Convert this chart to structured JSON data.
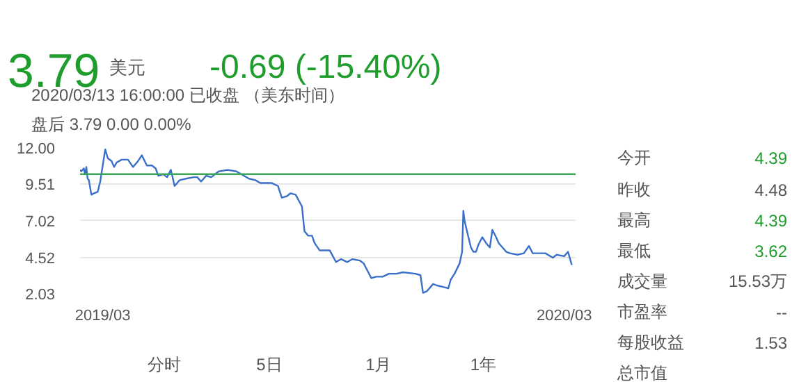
{
  "chart_data": {
    "type": "line",
    "x": [
      "2019-02-11",
      "2019-02-12",
      "2019-02-14",
      "2019-02-15",
      "2019-02-16",
      "2019-02-17",
      "2019-02-18",
      "2019-02-20",
      "2019-02-22",
      "2019-02-25",
      "2019-02-27",
      "2019-03-01",
      "2019-03-03",
      "2019-03-05",
      "2019-03-08",
      "2019-03-10",
      "2019-03-12",
      "2019-03-16",
      "2019-03-21",
      "2019-03-25",
      "2019-03-29",
      "2019-04-01",
      "2019-04-05",
      "2019-04-09",
      "2019-04-12",
      "2019-04-14",
      "2019-04-18",
      "2019-04-21",
      "2019-04-24",
      "2019-04-27",
      "2019-05-01",
      "2019-05-06",
      "2019-05-12",
      "2019-05-15",
      "2019-05-18",
      "2019-05-22",
      "2019-05-26",
      "2019-06-01",
      "2019-06-08",
      "2019-06-15",
      "2019-06-19",
      "2019-06-25",
      "2019-06-30",
      "2019-07-04",
      "2019-07-09",
      "2019-07-13",
      "2019-07-18",
      "2019-07-21",
      "2019-07-25",
      "2019-07-28",
      "2019-08-01",
      "2019-08-06",
      "2019-08-08",
      "2019-08-11",
      "2019-08-14",
      "2019-08-16",
      "2019-08-20",
      "2019-08-28",
      "2019-09-02",
      "2019-09-06",
      "2019-09-11",
      "2019-09-15",
      "2019-09-21",
      "2019-09-24",
      "2019-09-30",
      "2019-10-04",
      "2019-10-09",
      "2019-10-14",
      "2019-10-20",
      "2019-10-25",
      "2019-11-04",
      "2019-11-08",
      "2019-11-10",
      "2019-11-13",
      "2019-11-18",
      "2019-11-21",
      "2019-11-26",
      "2019-11-30",
      "2019-12-02",
      "2019-12-05",
      "2019-12-09",
      "2019-12-11",
      "2019-12-12",
      "2019-12-13",
      "2019-12-16",
      "2019-12-18",
      "2019-12-20",
      "2019-12-22",
      "2019-12-24",
      "2019-12-27",
      "2019-12-30",
      "2020-01-02",
      "2020-01-04",
      "2020-01-07",
      "2020-01-09",
      "2020-01-12",
      "2020-01-15",
      "2020-01-18",
      "2020-01-24",
      "2020-01-29",
      "2020-02-02",
      "2020-02-05",
      "2020-02-09",
      "2020-02-15",
      "2020-02-21",
      "2020-02-24",
      "2020-03-01",
      "2020-03-04",
      "2020-03-07"
    ],
    "series": [
      {
        "color": "#3a6fc9",
        "values": [
          10.5,
          10.4,
          10.6,
          10.2,
          10.7,
          9.9,
          9.8,
          8.8,
          8.9,
          9.0,
          9.7,
          10.8,
          11.9,
          11.3,
          11.1,
          10.7,
          11.0,
          11.2,
          11.2,
          10.7,
          11.1,
          11.5,
          10.8,
          10.8,
          10.6,
          10.1,
          10.2,
          10.0,
          10.5,
          9.4,
          9.8,
          9.9,
          10.0,
          10.0,
          9.7,
          10.1,
          10.0,
          10.4,
          10.5,
          10.4,
          10.2,
          9.9,
          9.8,
          9.6,
          9.6,
          9.6,
          9.4,
          8.6,
          8.7,
          8.9,
          8.8,
          8.0,
          6.3,
          6.0,
          6.0,
          5.5,
          5.0,
          5.0,
          4.2,
          4.4,
          4.2,
          4.4,
          4.3,
          4.1,
          3.1,
          3.2,
          3.2,
          3.4,
          3.4,
          3.5,
          3.4,
          3.3,
          2.1,
          2.2,
          2.7,
          2.6,
          2.5,
          2.4,
          3.0,
          3.4,
          4.1,
          4.9,
          7.7,
          7.0,
          5.9,
          5.2,
          4.9,
          4.9,
          5.4,
          5.9,
          5.5,
          5.2,
          6.4,
          5.9,
          5.5,
          5.2,
          4.9,
          4.8,
          4.7,
          4.8,
          5.3,
          4.8,
          4.8,
          4.8,
          4.5,
          4.7,
          4.6,
          4.9,
          4.0
        ]
      }
    ],
    "xlim": [
      "2019-02-11",
      "2020-03-10"
    ],
    "xticks": [
      {
        "value": "2019-03-01",
        "label": "2019/03"
      },
      {
        "value": "2020-03-01",
        "label": "2020/03"
      }
    ],
    "ylim": [
      2.03,
      12.0
    ],
    "yticks": [
      {
        "value": 12.0,
        "label": "12.00"
      },
      9.51,
      7.02,
      4.52,
      2.03
    ],
    "grid": "y",
    "marker": "none",
    "line_style": "solid",
    "ref_lines": [
      {
        "axis": "y",
        "value": 10.21,
        "label": null,
        "color": "#3aa757"
      }
    ],
    "annotations": [
      "3.79",
      "美元",
      "-0.69 (-15.40%)",
      "2020/03/13 16:00:00  已收盘 （美东时间）",
      "盘后  3.79  0.00  0.00%",
      "今开",
      "4.39",
      "昨收",
      "4.48",
      "最高",
      "4.39",
      "最低",
      "3.62",
      "成交量",
      "15.53万",
      "市盈率",
      "--",
      "每股收益",
      "1.53",
      "总市值",
      "分时",
      "5日",
      "1月",
      "1年"
    ]
  }
}
